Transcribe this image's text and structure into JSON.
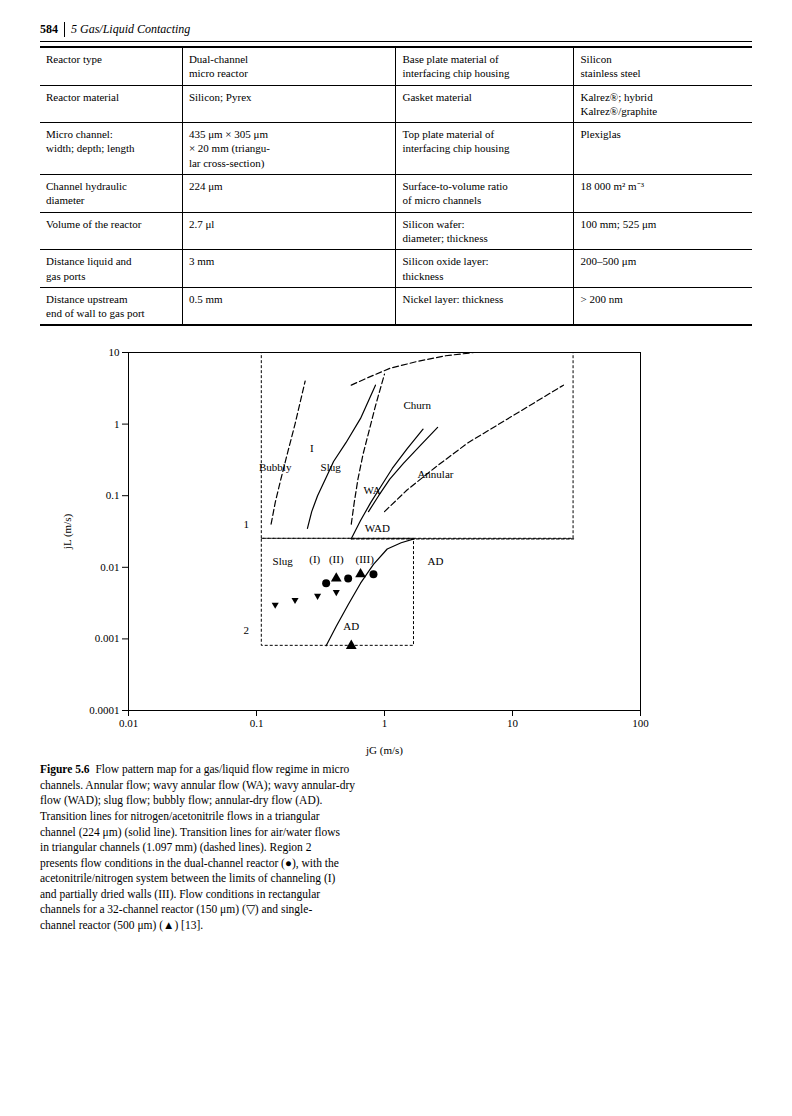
{
  "page_num": "584",
  "chapter_title": "5  Gas/Liquid Contacting",
  "table_rows": [
    [
      "Reactor type",
      "Dual-channel\nmicro reactor",
      "Base plate material of\ninterfacing chip housing",
      "Silicon\nstainless steel"
    ],
    [
      "Reactor material",
      "Silicon; Pyrex",
      "Gasket material",
      "Kalrez®; hybrid\nKalrez®/graphite"
    ],
    [
      "Micro channel:\nwidth; depth; length",
      "435 μm × 305 μm\n× 20 mm (triangu-\nlar cross-section)",
      "Top plate material of\ninterfacing chip housing",
      "Plexiglas"
    ],
    [
      "Channel hydraulic\ndiameter",
      "224 μm",
      "Surface-to-volume ratio\nof micro channels",
      "18 000 m² m⁻³"
    ],
    [
      "Volume of the reactor",
      "2.7 μl",
      "Silicon wafer:\ndiameter; thickness",
      "100 mm; 525 μm"
    ],
    [
      "Distance liquid and\ngas ports",
      "3 mm",
      "Silicon oxide layer:\nthickness",
      "200–500 μm"
    ],
    [
      "Distance upstream\nend of wall to gas port",
      "0.5 mm",
      "Nickel layer: thickness",
      "> 200 nm"
    ]
  ],
  "chart_data": {
    "type": "line",
    "xlabel": "jG (m/s)",
    "ylabel": "jL (m/s)",
    "log": true,
    "grid": false,
    "xlim": [
      0.01,
      100
    ],
    "ylim": [
      0.0001,
      10
    ],
    "xticks": [
      0.01,
      0.1,
      1,
      10,
      100
    ],
    "yticks": [
      0.0001,
      0.001,
      0.01,
      0.1,
      1,
      10
    ],
    "rectangles": [
      {
        "x": [
          0.11,
          30
        ],
        "y": [
          0.025,
          10
        ],
        "line_style": "dotted",
        "color": "#000000"
      },
      {
        "x": [
          0.11,
          1.7
        ],
        "y": [
          0.0008,
          0.025
        ],
        "line_style": "dotted",
        "color": "#000000"
      }
    ],
    "series": [
      {
        "type": "line",
        "line_style": "dashed",
        "color": "#000000",
        "x": [
          0.13,
          0.14,
          0.155,
          0.175,
          0.2,
          0.24
        ],
        "values": [
          0.04,
          0.08,
          0.17,
          0.4,
          1.0,
          4.0
        ]
      },
      {
        "type": "line",
        "line_style": "dashed",
        "color": "#000000",
        "x": [
          0.55,
          0.58,
          0.62,
          0.68,
          0.75,
          0.85,
          1.0
        ],
        "values": [
          0.04,
          0.08,
          0.17,
          0.38,
          0.75,
          1.8,
          5.0
        ]
      },
      {
        "type": "line",
        "line_style": "dashed",
        "color": "#000000",
        "x": [
          0.55,
          0.75,
          1.1,
          1.8,
          3.0,
          5.0
        ],
        "values": [
          3.5,
          4.5,
          6.0,
          7.5,
          9.0,
          10.0
        ]
      },
      {
        "type": "line",
        "line_style": "dashed",
        "color": "#000000",
        "x": [
          1.0,
          1.5,
          2.5,
          4.5,
          10.0,
          25.0
        ],
        "values": [
          0.06,
          0.12,
          0.25,
          0.55,
          1.3,
          3.5
        ]
      },
      {
        "type": "line",
        "line_style": "dotted",
        "color": "#000000",
        "x": [
          0.55,
          30.0
        ],
        "values": [
          0.025,
          0.025
        ]
      },
      {
        "type": "line",
        "line_style": "solid",
        "color": "#000000",
        "x": [
          0.25,
          0.27,
          0.3,
          0.35,
          0.4,
          0.5,
          0.65,
          0.85
        ],
        "values": [
          0.035,
          0.06,
          0.1,
          0.18,
          0.3,
          0.55,
          1.2,
          3.5
        ]
      },
      {
        "type": "line",
        "line_style": "solid",
        "color": "#000000",
        "x": [
          0.55,
          0.65,
          0.78,
          0.95,
          1.15,
          1.5,
          2.0
        ],
        "values": [
          0.025,
          0.045,
          0.08,
          0.14,
          0.24,
          0.45,
          0.85
        ]
      },
      {
        "type": "line",
        "line_style": "solid",
        "color": "#000000",
        "x": [
          0.75,
          0.9,
          1.1,
          1.4,
          1.9,
          2.6
        ],
        "values": [
          0.06,
          0.1,
          0.17,
          0.28,
          0.5,
          0.9
        ]
      },
      {
        "type": "line",
        "line_style": "solid",
        "color": "#000000",
        "x": [
          0.35,
          0.42,
          0.52,
          0.65,
          0.82,
          1.05,
          1.35,
          1.7
        ],
        "values": [
          0.0008,
          0.0015,
          0.003,
          0.006,
          0.011,
          0.018,
          0.022,
          0.025
        ]
      },
      {
        "type": "scatter",
        "marker": "circle",
        "color": "#000000",
        "x": [
          0.35,
          0.52,
          0.82
        ],
        "values": [
          0.006,
          0.007,
          0.008
        ]
      },
      {
        "type": "scatter",
        "marker": "triangle-up",
        "color": "#000000",
        "x": [
          0.42,
          0.65
        ],
        "values": [
          0.007,
          0.008
        ]
      },
      {
        "type": "scatter",
        "marker": "triangle-down",
        "color": "#000000",
        "x": [
          0.14,
          0.2,
          0.3,
          0.42
        ],
        "values": [
          0.003,
          0.0035,
          0.004,
          0.0045
        ]
      },
      {
        "type": "scatter",
        "marker": "triangle-up",
        "color": "#000000",
        "x": [
          0.55
        ],
        "values": [
          0.0008
        ]
      }
    ],
    "annotations": [
      {
        "text": "1",
        "x": 0.083,
        "y": 0.04
      },
      {
        "text": "2",
        "x": 0.083,
        "y": 0.0013
      },
      {
        "text": "Bubbly",
        "x": 0.14,
        "y": 0.25
      },
      {
        "text": "Slug",
        "x": 0.38,
        "y": 0.25
      },
      {
        "text": "WA",
        "x": 0.8,
        "y": 0.12
      },
      {
        "text": "Annular",
        "x": 2.5,
        "y": 0.2
      },
      {
        "text": "Churn",
        "x": 1.8,
        "y": 1.8
      },
      {
        "text": "WAD",
        "x": 0.88,
        "y": 0.035
      },
      {
        "text": "Slug",
        "x": 0.16,
        "y": 0.012
      },
      {
        "text": "AD",
        "x": 2.5,
        "y": 0.012
      },
      {
        "text": "AD",
        "x": 0.55,
        "y": 0.0015
      },
      {
        "text": "(I)",
        "x": 0.285,
        "y": 0.013
      },
      {
        "text": "(II)",
        "x": 0.42,
        "y": 0.013
      },
      {
        "text": "(III)",
        "x": 0.7,
        "y": 0.013
      },
      {
        "text": "I",
        "x": 0.27,
        "y": 0.45
      }
    ],
    "caption_title": "Figure 5.6",
    "caption": "  Flow pattern map for a gas/liquid flow regime in micro\nchannels. Annular flow; wavy annular flow (WA); wavy annular-dry\nflow (WAD); slug flow; bubbly flow; annular-dry flow (AD).\nTransition lines for nitrogen/acetonitrile flows in a triangular\nchannel (224 μm) (solid line). Transition lines for air/water flows\nin triangular channels (1.097 mm) (dashed lines). Region 2\npresents flow conditions in the dual-channel reactor (●), with the\nacetonitrile/nitrogen system between the limits of channeling (I)\nand partially dried walls (III). Flow conditions in rectangular\nchannels for a 32-channel reactor (150 μm) (▽) and single-\nchannel reactor (500 μm) (▲) [13]."
  }
}
